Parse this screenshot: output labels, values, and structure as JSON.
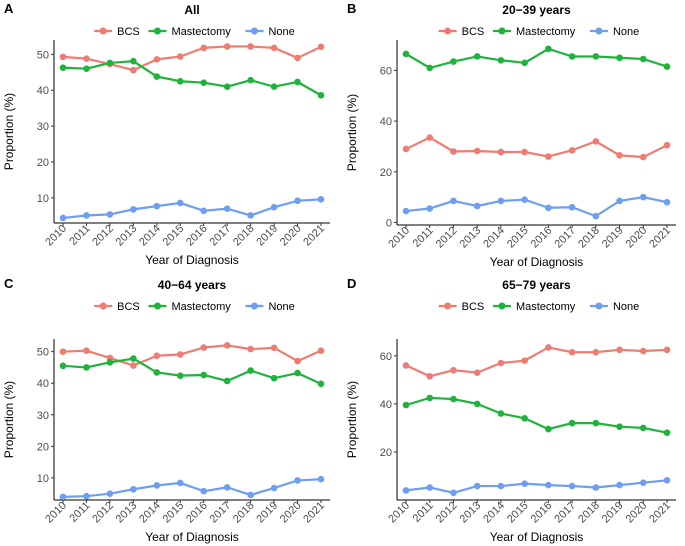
{
  "chart_data": [
    {
      "panel": "A",
      "title": "All",
      "type": "line",
      "xlabel": "Year of Diagnosis",
      "ylabel": "Proportion (%)",
      "x": [
        "2010",
        "2011",
        "2012",
        "2013",
        "2014",
        "2015",
        "2016",
        "2017",
        "2018",
        "2019",
        "2020",
        "2021"
      ],
      "yticks": [
        10,
        20,
        30,
        40,
        50
      ],
      "ylim": [
        3,
        54
      ],
      "legend_position": "top",
      "series": [
        {
          "name": "BCS",
          "color": "#f07b72",
          "values": [
            49.3,
            48.8,
            47.3,
            45.6,
            48.6,
            49.4,
            51.8,
            52.2,
            52.2,
            51.8,
            49.0,
            52.1
          ]
        },
        {
          "name": "Mastectomy",
          "color": "#1eb33a",
          "values": [
            46.3,
            46.0,
            47.6,
            48.1,
            43.8,
            42.5,
            42.1,
            41.0,
            42.8,
            41.0,
            42.3,
            38.6
          ]
        },
        {
          "name": "None",
          "color": "#6d9ef0",
          "values": [
            4.4,
            5.1,
            5.4,
            6.8,
            7.7,
            8.6,
            6.4,
            7.0,
            5.1,
            7.4,
            9.2,
            9.6
          ]
        }
      ]
    },
    {
      "panel": "B",
      "title": "20−39 years",
      "type": "line",
      "xlabel": "Year of Diagnosis",
      "ylabel": "Proportion (%)",
      "x": [
        "2010",
        "2011",
        "2012",
        "2013",
        "2014",
        "2015",
        "2016",
        "2017",
        "2018",
        "2019",
        "2020",
        "2021"
      ],
      "yticks": [
        0,
        20,
        40,
        60
      ],
      "ylim": [
        -1,
        72
      ],
      "legend_position": "top",
      "series": [
        {
          "name": "BCS",
          "color": "#f07b72",
          "values": [
            29.0,
            33.5,
            28.0,
            28.2,
            27.8,
            27.8,
            26.0,
            28.5,
            32.0,
            26.5,
            25.8,
            30.5
          ]
        },
        {
          "name": "Mastectomy",
          "color": "#1eb33a",
          "values": [
            66.5,
            61.0,
            63.5,
            65.5,
            64.0,
            63.0,
            68.5,
            65.5,
            65.5,
            65.0,
            64.5,
            61.5
          ]
        },
        {
          "name": "None",
          "color": "#6d9ef0",
          "values": [
            4.5,
            5.5,
            8.5,
            6.5,
            8.5,
            9.0,
            5.8,
            6.0,
            2.5,
            8.5,
            10.0,
            8.0
          ]
        }
      ]
    },
    {
      "panel": "C",
      "title": "40−64 years",
      "type": "line",
      "xlabel": "Year of Diagnosis",
      "ylabel": "Proportion (%)",
      "x": [
        "2010",
        "2011",
        "2012",
        "2013",
        "2014",
        "2015",
        "2016",
        "2017",
        "2018",
        "2019",
        "2020",
        "2021"
      ],
      "yticks": [
        10,
        20,
        30,
        40,
        50
      ],
      "ylim": [
        3,
        54
      ],
      "legend_position": "top",
      "series": [
        {
          "name": "BCS",
          "color": "#f07b72",
          "values": [
            50.0,
            50.3,
            48.0,
            45.6,
            48.7,
            49.1,
            51.3,
            52.0,
            50.8,
            51.2,
            47.0,
            50.3
          ]
        },
        {
          "name": "Mastectomy",
          "color": "#1eb33a",
          "values": [
            45.5,
            45.0,
            46.6,
            47.8,
            43.4,
            42.4,
            42.6,
            40.7,
            44.0,
            41.6,
            43.2,
            39.8
          ]
        },
        {
          "name": "None",
          "color": "#6d9ef0",
          "values": [
            4.0,
            4.2,
            5.0,
            6.4,
            7.6,
            8.4,
            5.8,
            7.0,
            4.6,
            6.8,
            9.2,
            9.6
          ]
        }
      ]
    },
    {
      "panel": "D",
      "title": "65−79 years",
      "type": "line",
      "xlabel": "Year of Diagnosis",
      "ylabel": "Proportion (%)",
      "x": [
        "2010",
        "2011",
        "2012",
        "2013",
        "2014",
        "2015",
        "2016",
        "2017",
        "2018",
        "2019",
        "2020",
        "2021"
      ],
      "yticks": [
        20,
        40,
        60
      ],
      "ylim": [
        0,
        67
      ],
      "legend_position": "top",
      "series": [
        {
          "name": "BCS",
          "color": "#f07b72",
          "values": [
            56.0,
            51.5,
            54.0,
            53.0,
            57.0,
            58.0,
            63.5,
            61.5,
            61.5,
            62.5,
            62.0,
            62.5
          ]
        },
        {
          "name": "Mastectomy",
          "color": "#1eb33a",
          "values": [
            39.5,
            42.5,
            42.0,
            40.0,
            36.0,
            34.0,
            29.5,
            32.0,
            32.0,
            30.5,
            30.0,
            28.0
          ]
        },
        {
          "name": "None",
          "color": "#6d9ef0",
          "values": [
            4.0,
            5.2,
            3.0,
            5.8,
            5.8,
            6.8,
            6.2,
            5.8,
            5.2,
            6.2,
            7.2,
            8.2
          ]
        }
      ]
    }
  ]
}
